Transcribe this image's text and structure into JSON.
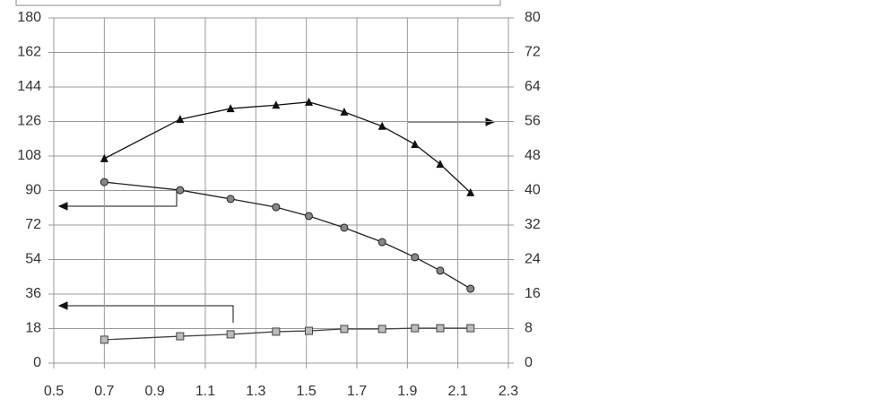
{
  "chart_data": {
    "type": "line",
    "x": [
      0.7,
      1.0,
      1.2,
      1.38,
      1.51,
      1.65,
      1.8,
      1.93,
      2.03,
      2.15
    ],
    "series": [
      {
        "color": "#111",
        "marker": "triangle",
        "axis": "y2",
        "values": [
          47.4,
          56.5,
          59.0,
          59.8,
          60.5,
          58.2,
          54.9,
          50.7,
          46.1,
          39.5
        ]
      },
      {
        "color": "#222",
        "marker": "circle",
        "values": [
          94.4,
          90.2,
          85.6,
          81.3,
          76.7,
          70.6,
          63.1,
          55.2,
          48.2,
          38.8
        ]
      },
      {
        "color": "#444",
        "marker": "square",
        "values": [
          12.2,
          14.0,
          15.0,
          16.4,
          16.8,
          17.8,
          17.8,
          18.2,
          18.2,
          18.2
        ]
      }
    ],
    "xlim": [
      0.5,
      2.3
    ],
    "xticks": [
      0.5,
      0.7,
      0.9,
      1.1,
      1.3,
      1.5,
      1.7,
      1.9,
      2.1,
      2.3
    ],
    "ylim": [
      0,
      180
    ],
    "yticks": [
      0,
      18,
      36,
      54,
      72,
      90,
      108,
      126,
      144,
      162,
      180
    ],
    "y2lim": [
      0,
      80
    ],
    "y2ticks": [
      0,
      8,
      16,
      24,
      32,
      40,
      48,
      56,
      64,
      72,
      80
    ],
    "grid": true
  }
}
